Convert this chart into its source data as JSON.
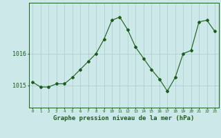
{
  "x": [
    0,
    1,
    2,
    3,
    4,
    5,
    6,
    7,
    8,
    9,
    10,
    11,
    12,
    13,
    14,
    15,
    16,
    17,
    18,
    19,
    20,
    21,
    22,
    23
  ],
  "y": [
    1015.1,
    1014.95,
    1014.95,
    1015.05,
    1015.05,
    1015.25,
    1015.5,
    1015.75,
    1016.0,
    1016.45,
    1017.05,
    1017.15,
    1016.75,
    1016.2,
    1015.85,
    1015.5,
    1015.2,
    1014.82,
    1015.25,
    1016.0,
    1016.1,
    1017.0,
    1017.05,
    1016.7
  ],
  "line_color": "#1a5c1a",
  "marker": "D",
  "marker_size": 2.0,
  "background_color": "#cce8e8",
  "grid_color": "#aacccc",
  "xlabel": "Graphe pression niveau de la mer (hPa)",
  "xlabel_fontsize": 6.5,
  "ytick_labels": [
    "1015",
    "1016"
  ],
  "ytick_values": [
    1015,
    1016
  ],
  "ylim": [
    1014.3,
    1017.6
  ],
  "xlim": [
    -0.5,
    23.5
  ],
  "xtick_fontsize": 4.2,
  "ytick_fontsize": 6.0
}
